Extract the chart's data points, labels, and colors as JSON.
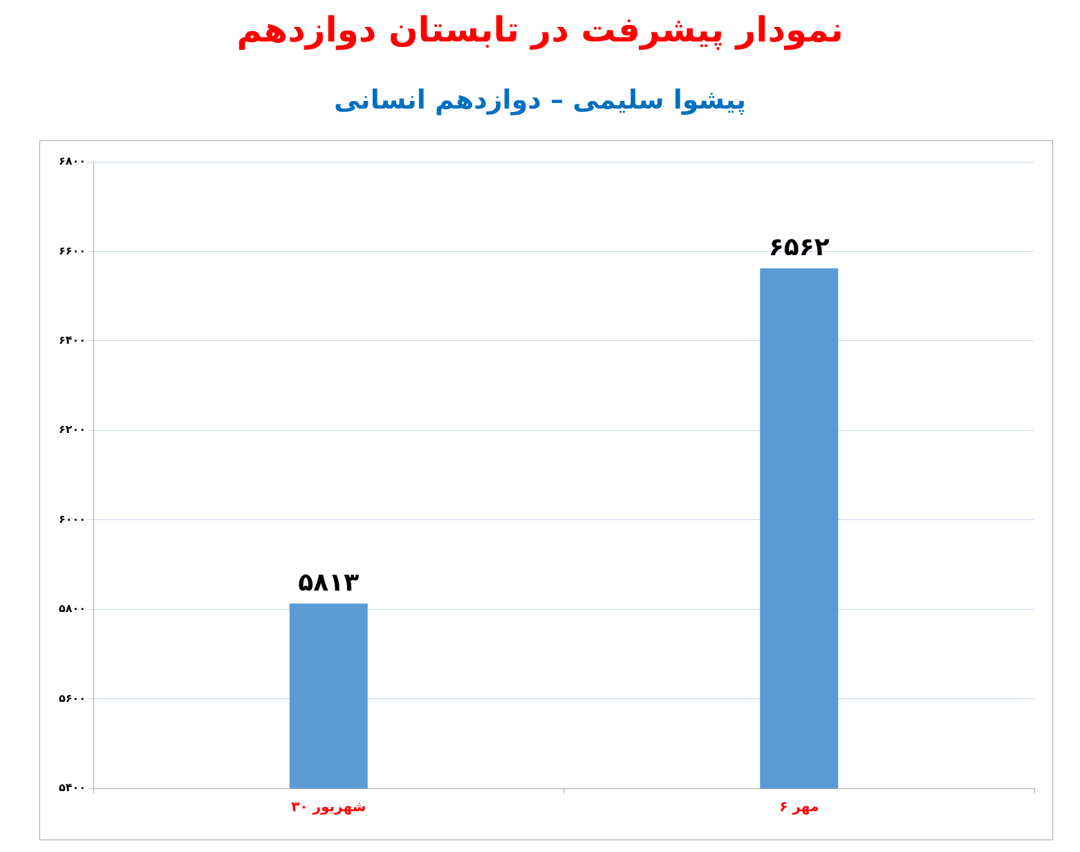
{
  "chart_data": {
    "type": "bar",
    "title": "نمودار پیشرفت در تابستان دوازدهم",
    "subtitle": "پیشوا سلیمی – دوازدهم انسانی",
    "categories": [
      "۳۰ شهریور",
      "۶ مهر"
    ],
    "values": [
      5813,
      6562
    ],
    "value_labels": [
      "۵۸۱۳",
      "۶۵۶۲"
    ],
    "color": "#5b9bd5",
    "ylim": [
      5400,
      6800
    ],
    "yticks": [
      {
        "value": 5400,
        "label": "۵۴۰۰"
      },
      {
        "value": 5600,
        "label": "۵۶۰۰"
      },
      {
        "value": 5800,
        "label": "۵۸۰۰"
      },
      {
        "value": 6000,
        "label": "۶۰۰۰"
      },
      {
        "value": 6200,
        "label": "۶۲۰۰"
      },
      {
        "value": 6400,
        "label": "۶۴۰۰"
      },
      {
        "value": 6600,
        "label": "۶۶۰۰"
      },
      {
        "value": 6800,
        "label": "۶۸۰۰"
      }
    ],
    "grid": "y"
  }
}
